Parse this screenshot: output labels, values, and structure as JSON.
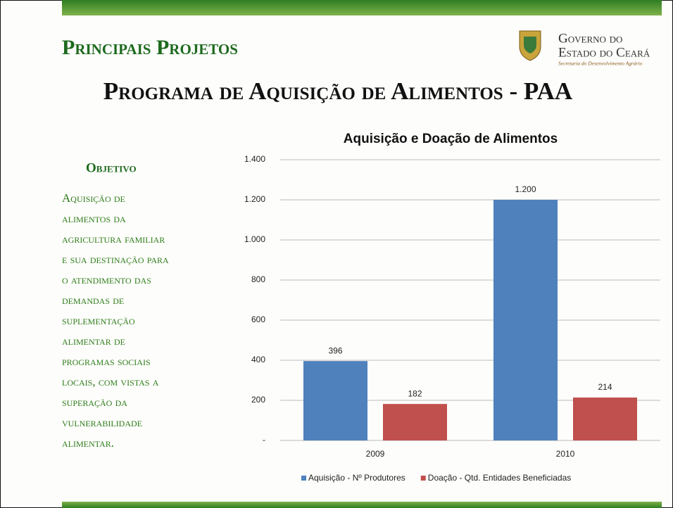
{
  "header": {
    "section": "Principais Projetos",
    "title": "Programa de Aquisição de Alimentos - PAA",
    "logo": {
      "line1": "Governo do",
      "line2": "Estado do Ceará",
      "line3": "Secretaria do Desenvolvimento Agrário"
    }
  },
  "objective": {
    "heading": "Objetivo",
    "lines": [
      "Aquisição de",
      "alimentos da",
      "agricultura familiar",
      "e sua destinação para",
      "o atendimento das",
      "demandas de",
      "suplementação",
      "alimentar de",
      "programas sociais",
      "locais, com vistas a",
      "superação da",
      "vulnerabilidade",
      "alimentar."
    ]
  },
  "chart_data": {
    "type": "bar",
    "title": "Aquisição e Doação de Alimentos",
    "categories": [
      "2009",
      "2010"
    ],
    "series": [
      {
        "name": "Aquisição - Nº Produtores",
        "color": "#4f81bd",
        "values": [
          396,
          1200
        ],
        "value_labels": [
          "396",
          "1.200"
        ]
      },
      {
        "name": "Doação - Qtd. Entidades Beneficiadas",
        "color": "#c0504d",
        "values": [
          182,
          214
        ],
        "value_labels": [
          "182",
          "214"
        ]
      }
    ],
    "ylim": [
      0,
      1400
    ],
    "yticks": [
      {
        "value": 0,
        "label": "-"
      },
      200,
      400,
      600,
      800,
      {
        "value": 1000,
        "label": "1.000"
      },
      {
        "value": 1200,
        "label": "1.200"
      },
      {
        "value": 1400,
        "label": "1.400"
      }
    ],
    "grid": true,
    "legend": "bottom"
  }
}
